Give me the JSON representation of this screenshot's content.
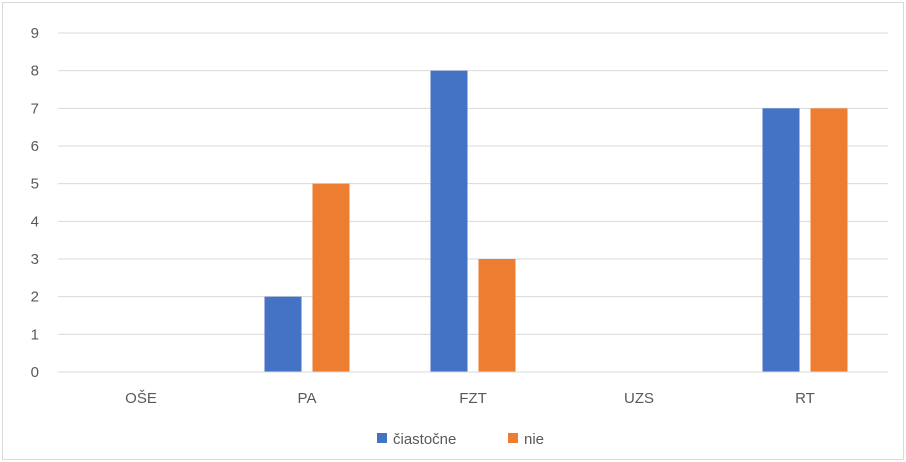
{
  "chart_data": {
    "type": "bar",
    "title": "",
    "xlabel": "",
    "ylabel": "",
    "categories": [
      "OŠE",
      "PA",
      "FZT",
      "UZS",
      "RT"
    ],
    "series": [
      {
        "name": "čiastočne",
        "color": "#4472c4",
        "values": [
          0,
          2,
          8,
          0,
          7
        ]
      },
      {
        "name": "nie",
        "color": "#ed7d31",
        "values": [
          0,
          5,
          3,
          0,
          7
        ]
      }
    ],
    "ylim": [
      0,
      9
    ],
    "yticks": [
      0,
      1,
      2,
      3,
      4,
      5,
      6,
      7,
      8,
      9
    ],
    "grid": true,
    "legend_position": "bottom"
  }
}
